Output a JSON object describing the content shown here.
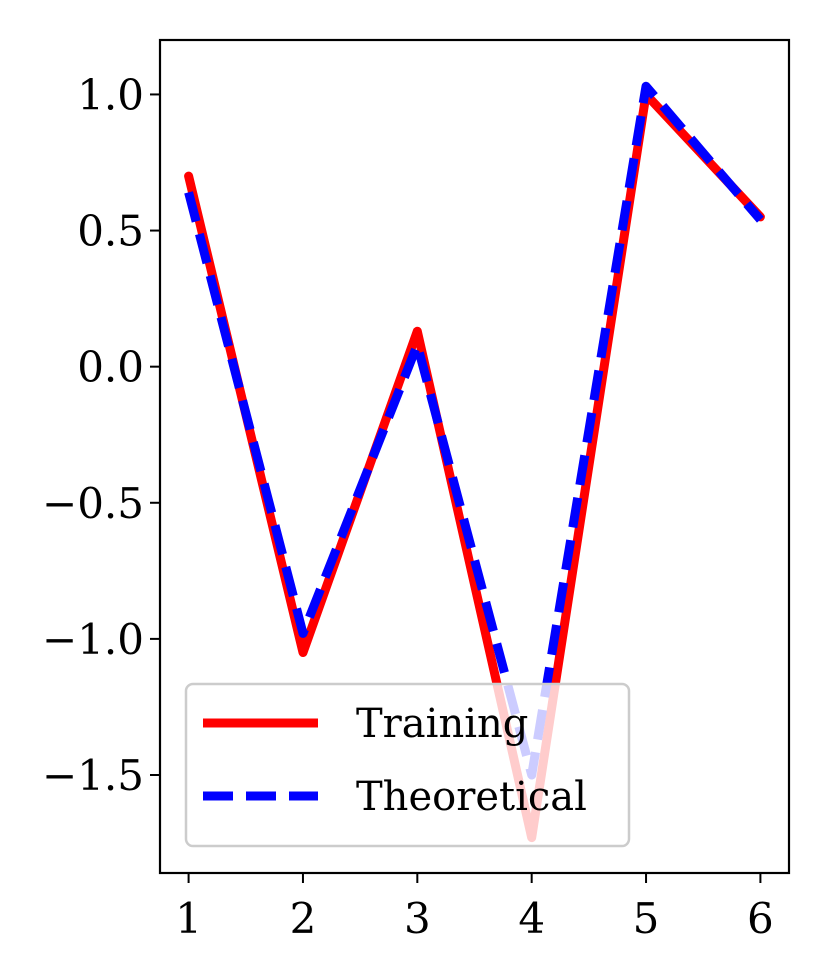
{
  "chart_data": {
    "type": "line",
    "x": [
      1,
      2,
      3,
      4,
      5,
      6
    ],
    "series": [
      {
        "name": "Training",
        "values": [
          0.7,
          -1.05,
          0.13,
          -1.73,
          1.0,
          0.55
        ],
        "color": "#ff0000",
        "style": "solid"
      },
      {
        "name": "Theoretical",
        "values": [
          0.64,
          -0.98,
          0.08,
          -1.5,
          1.03,
          0.54
        ],
        "color": "#0000ff",
        "style": "dashed"
      }
    ],
    "xticks": [
      "1",
      "2",
      "3",
      "4",
      "5",
      "6"
    ],
    "yticks": [
      {
        "value": 1.0,
        "label": "1.0"
      },
      {
        "value": 0.5,
        "label": "0.5"
      },
      {
        "value": 0.0,
        "label": "0.0"
      },
      {
        "value": -0.5,
        "label": "−0.5"
      },
      {
        "value": -1.0,
        "label": "−1.0"
      },
      {
        "value": -1.5,
        "label": "−1.5"
      }
    ],
    "xlim": [
      0.75,
      6.25
    ],
    "ylim": [
      -1.86,
      1.2
    ],
    "grid": false,
    "legend_position": "lower-left",
    "title": "",
    "xlabel": "",
    "ylabel": ""
  }
}
